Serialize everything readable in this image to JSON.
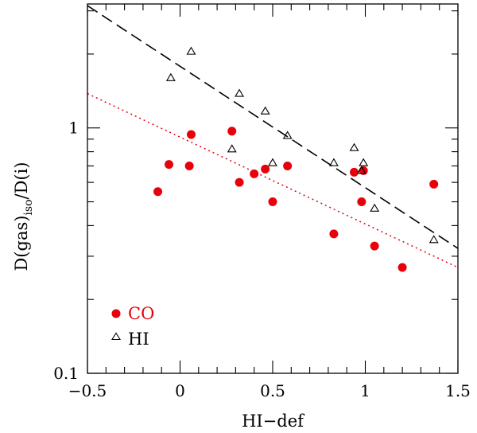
{
  "chart_data": {
    "type": "scatter",
    "title": "",
    "xlabel": "HI−def",
    "ylabel": {
      "main": "D(gas)",
      "subscript": "iso",
      "rest": "/D(i)"
    },
    "xlim": [
      -0.5,
      1.5
    ],
    "ylim": [
      0.1,
      3.2
    ],
    "yscale": "log",
    "x_ticks": [
      -0.5,
      0,
      0.5,
      1,
      1.5
    ],
    "x_tick_labels": [
      "−0.5",
      "0",
      "0.5",
      "1",
      "1.5"
    ],
    "y_ticks": [
      0.1,
      1
    ],
    "y_tick_labels": [
      "0.1",
      "1"
    ],
    "series": [
      {
        "name": "CO",
        "marker": "filled-circle",
        "color": "#e8000b",
        "points": [
          [
            -0.12,
            0.55
          ],
          [
            -0.06,
            0.71
          ],
          [
            0.05,
            0.7
          ],
          [
            0.06,
            0.94
          ],
          [
            0.28,
            0.97
          ],
          [
            0.32,
            0.6
          ],
          [
            0.4,
            0.65
          ],
          [
            0.46,
            0.68
          ],
          [
            0.5,
            0.5
          ],
          [
            0.58,
            0.7
          ],
          [
            0.83,
            0.37
          ],
          [
            0.94,
            0.66
          ],
          [
            0.98,
            0.5
          ],
          [
            0.99,
            0.67
          ],
          [
            1.05,
            0.33
          ],
          [
            1.2,
            0.27
          ],
          [
            1.37,
            0.59
          ]
        ]
      },
      {
        "name": "HI",
        "marker": "open-triangle",
        "color": "#000000",
        "points": [
          [
            -0.05,
            1.6
          ],
          [
            0.06,
            2.05
          ],
          [
            0.28,
            0.82
          ],
          [
            0.32,
            1.38
          ],
          [
            0.46,
            1.17
          ],
          [
            0.5,
            0.72
          ],
          [
            0.58,
            0.93
          ],
          [
            0.83,
            0.72
          ],
          [
            0.94,
            0.83
          ],
          [
            0.98,
            0.67
          ],
          [
            0.99,
            0.72
          ],
          [
            1.05,
            0.47
          ],
          [
            1.37,
            0.35
          ]
        ]
      }
    ],
    "fits": [
      {
        "name": "HI fit",
        "style": "dashed",
        "color": "#000000",
        "x": [
          -0.5,
          1.5
        ],
        "y": [
          3.15,
          0.323
        ]
      },
      {
        "name": "CO fit",
        "style": "dotted",
        "color": "#e8000b",
        "x": [
          -0.5,
          1.5
        ],
        "y": [
          1.38,
          0.27
        ]
      }
    ],
    "legend": {
      "position": "bottom-left",
      "entries": [
        {
          "label": "CO",
          "marker": "filled-circle",
          "color": "#e8000b"
        },
        {
          "label": "HI",
          "marker": "open-triangle",
          "color": "#000000"
        }
      ]
    }
  }
}
